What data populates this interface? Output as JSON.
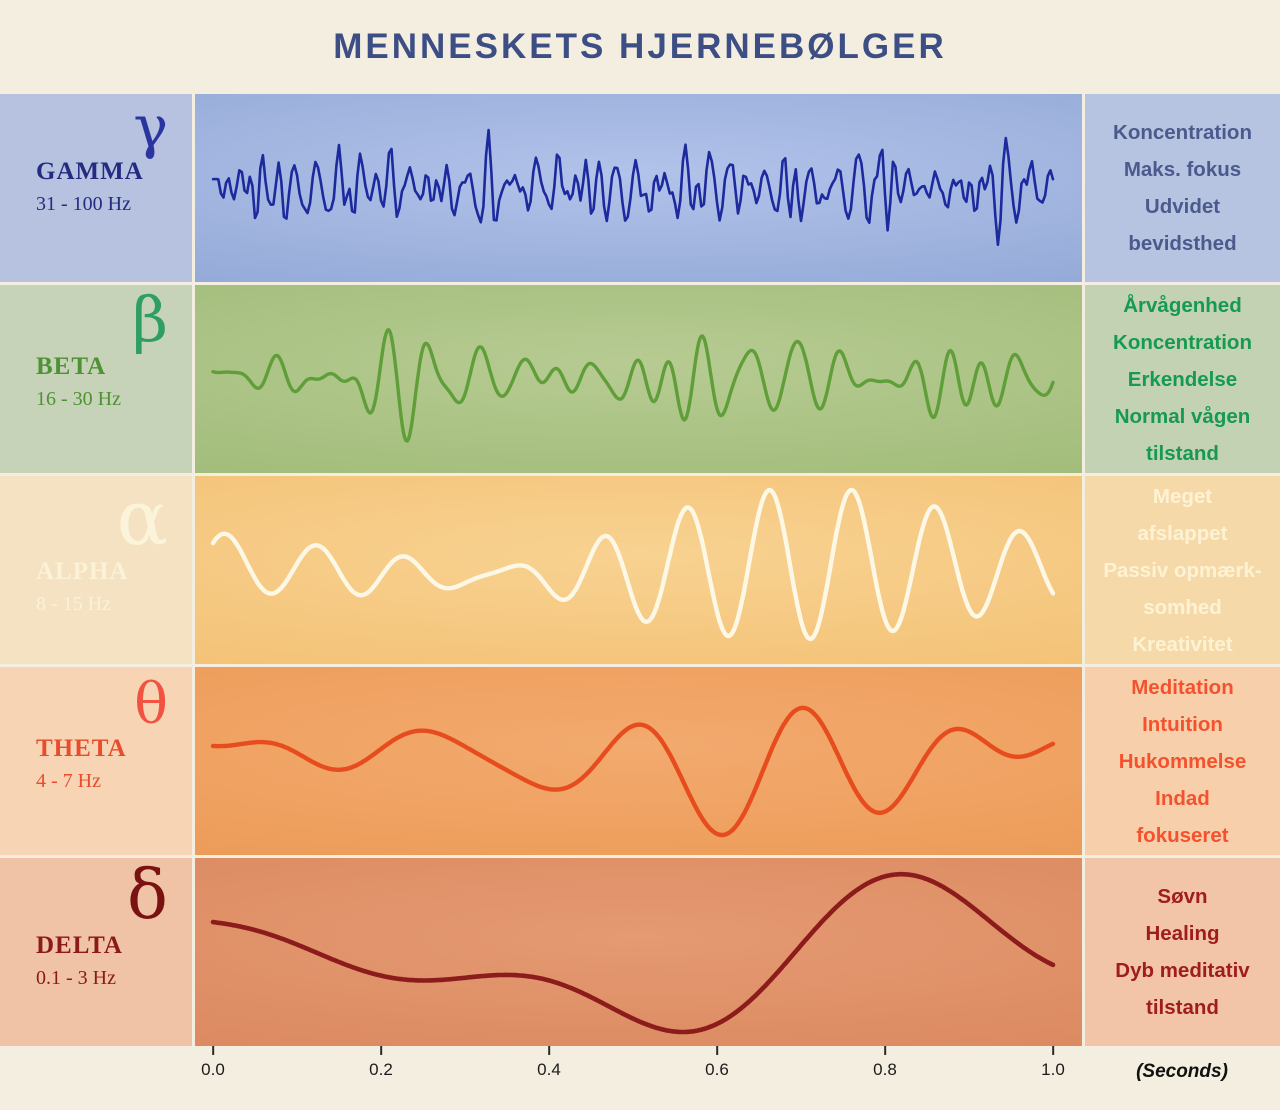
{
  "title": "MENNESKETS HJERNEBØLGER",
  "axis": {
    "ticks": [
      "0.0",
      "0.2",
      "0.4",
      "0.6",
      "0.8",
      "1.0"
    ],
    "unit_label": "(Seconds)"
  },
  "bands": [
    {
      "id": "gamma",
      "symbol": "γ",
      "name": "GAMMA",
      "range": "31 - 100 Hz",
      "descriptions": [
        "Koncentration",
        "Maks. fokus",
        "Udvidet",
        "bevidsthed"
      ],
      "colors": {
        "left_bg": "#b6c2df",
        "right_bg": "#b7c4e1",
        "mid_inner": "#b2c3ea",
        "mid_outer": "#8aa1d1",
        "wave": "#1c2a9e",
        "symbol": "#2b35a0",
        "label": "#232c80",
        "desc": "#4b5a8c"
      },
      "wave": {
        "stroke_width": 2.6,
        "amplitude": 58,
        "samples": 320,
        "components": [
          [
            34,
            1.0,
            0.7
          ],
          [
            39,
            0.85,
            2.3
          ],
          [
            45,
            0.9,
            4.1
          ],
          [
            52,
            0.75,
            1.2
          ],
          [
            60,
            0.7,
            3.6
          ],
          [
            68,
            0.6,
            0.4
          ],
          [
            77,
            0.5,
            5.2
          ],
          [
            85,
            0.45,
            2.9
          ],
          [
            96,
            0.35,
            4.6
          ],
          [
            5,
            0.25,
            1.5
          ]
        ]
      }
    },
    {
      "id": "beta",
      "symbol": "β",
      "name": "BETA",
      "range": "16 - 30 Hz",
      "descriptions": [
        "Årvågenhed",
        "Koncentration",
        "Erkendelse",
        "Normal vågen",
        "tilstand"
      ],
      "colors": {
        "left_bg": "#c6d3b9",
        "right_bg": "#c3d2b2",
        "mid_inner": "#b7cb92",
        "mid_outer": "#9ab873",
        "wave": "#5f9e38",
        "symbol": "#2f9e62",
        "label": "#4e9234",
        "desc": "#169a52"
      },
      "wave": {
        "stroke_width": 3.4,
        "amplitude": 62,
        "samples": 640,
        "components": [
          [
            16,
            1.0,
            0.4
          ],
          [
            18.5,
            0.85,
            2.7
          ],
          [
            21,
            0.8,
            4.9
          ],
          [
            24,
            0.7,
            1.8
          ],
          [
            27,
            0.55,
            3.4
          ],
          [
            30,
            0.45,
            5.7
          ],
          [
            3,
            0.3,
            0.9
          ]
        ]
      }
    },
    {
      "id": "alpha",
      "symbol": "α",
      "name": "ALPHA",
      "range": "8 - 15 Hz",
      "descriptions": [
        "Meget",
        "afslappet",
        "Passiv opmærk-",
        "somhed",
        "Kreativitet"
      ],
      "colors": {
        "left_bg": "#f5e2c2",
        "right_bg": "#f6d9a8",
        "mid_inner": "#f8d291",
        "mid_outer": "#f2bd6e",
        "wave": "#fdf8e6",
        "symbol": "#fcf4da",
        "label": "#fbf2d8",
        "desc": "#fdf3d4"
      },
      "wave": {
        "stroke_width": 4.4,
        "amplitude": 80,
        "samples": 640,
        "components": [
          [
            9.5,
            1.0,
            0.0
          ],
          [
            10.5,
            0.85,
            1.6
          ],
          [
            11.5,
            0.35,
            3.9
          ],
          [
            1.2,
            0.2,
            2.2
          ]
        ]
      }
    },
    {
      "id": "theta",
      "symbol": "θ",
      "name": "THETA",
      "range": "4 - 7 Hz",
      "descriptions": [
        "Meditation",
        "Intuition",
        "Hukommelse",
        "Indad",
        "fokuseret"
      ],
      "colors": {
        "left_bg": "#f6d4b4",
        "right_bg": "#f7d0ab",
        "mid_inner": "#f3aa6e",
        "mid_outer": "#ea9752",
        "wave": "#e64c1e",
        "symbol": "#f25242",
        "label": "#e84c2c",
        "desc": "#f4522e"
      },
      "wave": {
        "stroke_width": 4.4,
        "amplitude": 74,
        "samples": 640,
        "components": [
          [
            4.3,
            1.0,
            1.1
          ],
          [
            5.4,
            0.8,
            3.3
          ],
          [
            6.3,
            0.55,
            5.2
          ],
          [
            1.1,
            0.45,
            0.6
          ]
        ]
      }
    },
    {
      "id": "delta",
      "symbol": "δ",
      "name": "DELTA",
      "range": "0.1 - 3 Hz",
      "descriptions": [
        "Søvn",
        "Healing",
        "Dyb meditativ",
        "tilstand"
      ],
      "colors": {
        "left_bg": "#f0c2a6",
        "right_bg": "#f2c5a8",
        "mid_inner": "#e59a72",
        "mid_outer": "#d8845a",
        "wave": "#8c1c1c",
        "symbol": "#7a1212",
        "label": "#8c1a1a",
        "desc": "#a01d1d"
      },
      "wave": {
        "stroke_width": 4.6,
        "amplitude": 80,
        "samples": 640,
        "components": [
          [
            1.15,
            1.0,
            1.9
          ],
          [
            1.9,
            0.8,
            4.2
          ],
          [
            2.7,
            0.5,
            0.7
          ],
          [
            0.6,
            0.6,
            2.8
          ]
        ]
      }
    }
  ]
}
